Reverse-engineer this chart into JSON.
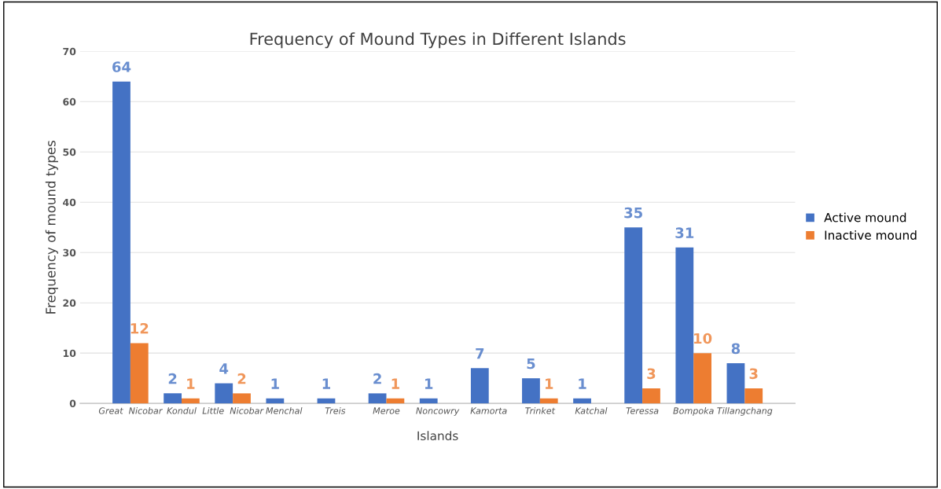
{
  "chart_data": {
    "type": "bar",
    "title": "Frequency of Mound Types in Different Islands",
    "xlabel": "Islands",
    "ylabel": "Frequency of mound types",
    "categories": [
      "Great  Nicobar",
      "Kondul",
      "Little  Nicobar",
      "Menchal",
      "Treis",
      "Meroe",
      "Noncowry",
      "Kamorta",
      "Trinket",
      "Katchal",
      "Teressa",
      "Bompoka",
      "Tillangchang"
    ],
    "series": [
      {
        "name": "Active mound",
        "color": "#4472c4",
        "values": [
          64,
          2,
          4,
          1,
          1,
          2,
          1,
          7,
          5,
          1,
          35,
          31,
          8
        ]
      },
      {
        "name": "Inactive mound",
        "color": "#ed7d31",
        "values": [
          12,
          1,
          2,
          null,
          null,
          1,
          null,
          null,
          1,
          null,
          3,
          10,
          3
        ]
      }
    ],
    "ylim": [
      0,
      70
    ],
    "yticks": [
      0,
      10,
      20,
      30,
      40,
      50,
      60,
      70
    ],
    "grid": "y",
    "legend": "right",
    "data_labels": true
  }
}
